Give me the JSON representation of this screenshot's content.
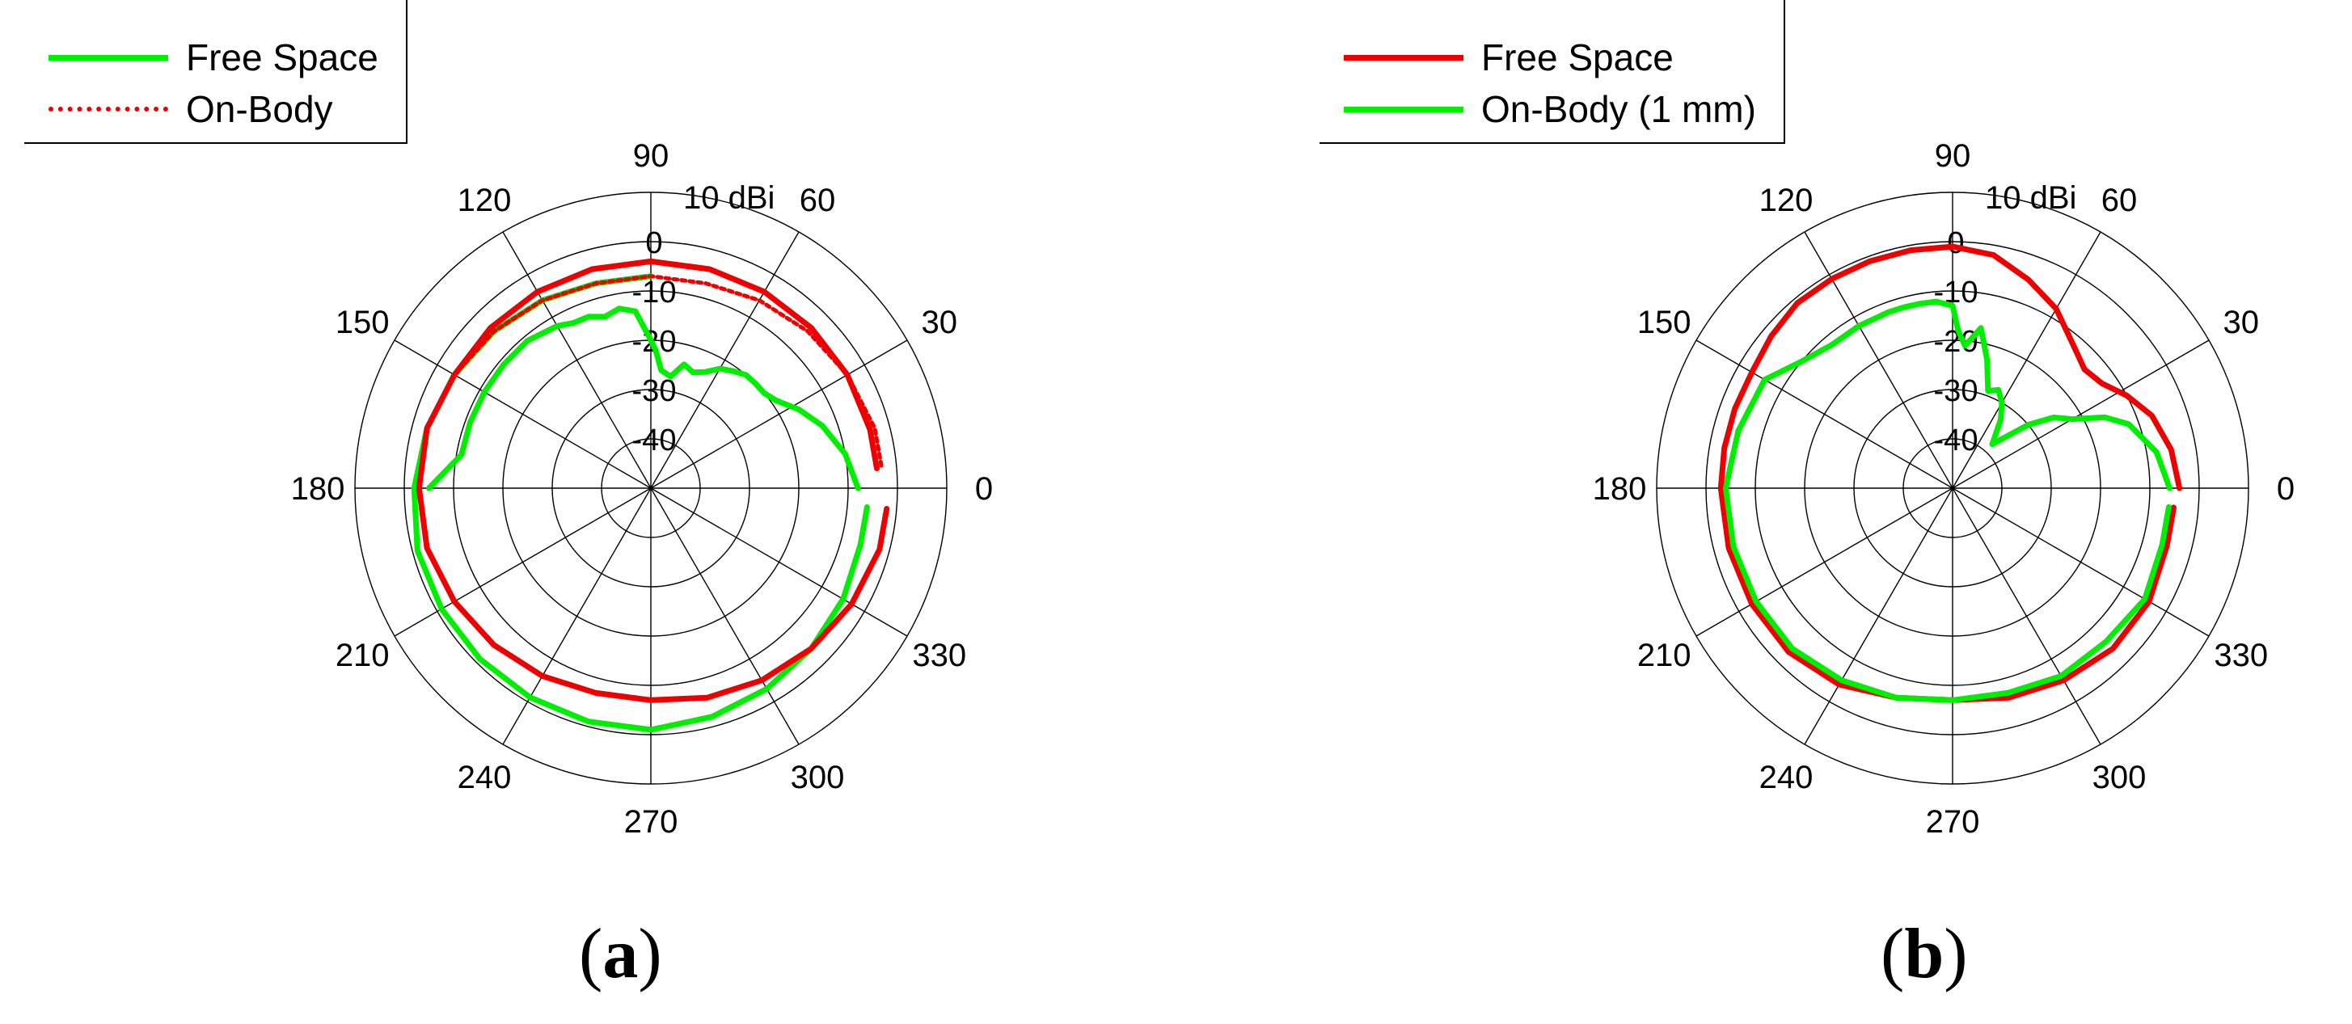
{
  "chart_data": [
    {
      "type": "polar-line",
      "caption_open": "(",
      "caption_letter": "a",
      "caption_close": ")",
      "radial_unit_label": "10 dBi",
      "radial_ticks": [
        0,
        -10,
        -20,
        -30,
        -40
      ],
      "r_range": [
        -50,
        10
      ],
      "angle_ticks": [
        "0",
        "30",
        "60",
        "90",
        "120",
        "150",
        "180",
        "210",
        "240",
        "270",
        "300",
        "330"
      ],
      "grid": true,
      "legend_position": "top-left",
      "series": [
        {
          "name": "Free Space",
          "color": "#00ee00",
          "dash": "solid",
          "points": [
            [
              -5,
              -6
            ],
            [
              -15,
              -6
            ],
            [
              -30,
              -5
            ],
            [
              -45,
              -4
            ],
            [
              -60,
              -3
            ],
            [
              -75,
              -2
            ],
            [
              -90,
              -1
            ],
            [
              -105,
              -1
            ],
            [
              -120,
              -1
            ],
            [
              -135,
              -1
            ],
            [
              -150,
              -1
            ],
            [
              -165,
              -1
            ],
            [
              -180,
              -2
            ],
            [
              -195,
              -3
            ],
            [
              -210,
              -4
            ],
            [
              -225,
              -5
            ],
            [
              -240,
              -6
            ],
            [
              -255,
              -7
            ],
            [
              -270,
              -7
            ]
          ]
        },
        {
          "name": "On-Body",
          "color": "#ee0000",
          "dash": "dotted",
          "points": [
            [
              -210,
              -4
            ],
            [
              -225,
              -5
            ],
            [
              -240,
              -6
            ],
            [
              -255,
              -7
            ],
            [
              -270,
              -7
            ],
            [
              -285,
              -7
            ],
            [
              -300,
              -6
            ],
            [
              -315,
              -5
            ],
            [
              -330,
              -4
            ],
            [
              -345,
              -3
            ],
            [
              -355,
              -3
            ]
          ]
        },
        {
          "name": "",
          "color": "#ee0000",
          "dash": "solid",
          "points": [
            [
              5,
              -4
            ],
            [
              15,
              -4
            ],
            [
              30,
              -4
            ],
            [
              45,
              -4
            ],
            [
              60,
              -4
            ],
            [
              75,
              -4
            ],
            [
              90,
              -4
            ],
            [
              105,
              -4
            ],
            [
              120,
              -4
            ],
            [
              135,
              -4
            ],
            [
              150,
              -4
            ],
            [
              165,
              -3
            ],
            [
              180,
              -3
            ],
            [
              195,
              -3
            ],
            [
              210,
              -4
            ],
            [
              225,
              -5
            ],
            [
              240,
              -6
            ],
            [
              255,
              -7
            ],
            [
              270,
              -7
            ],
            [
              285,
              -6
            ],
            [
              300,
              -5
            ],
            [
              315,
              -4
            ],
            [
              330,
              -3
            ],
            [
              345,
              -2
            ],
            [
              355,
              -2
            ]
          ]
        },
        {
          "name": "",
          "color": "#00ee00",
          "dash": "solid",
          "points": [
            [
              0,
              -8
            ],
            [
              10,
              -10
            ],
            [
              20,
              -13
            ],
            [
              28,
              -16
            ],
            [
              35,
              -19
            ],
            [
              40,
              -20
            ],
            [
              45,
              -20
            ],
            [
              50,
              -20
            ],
            [
              55,
              -21
            ],
            [
              60,
              -22
            ],
            [
              65,
              -24
            ],
            [
              70,
              -25
            ],
            [
              75,
              -24
            ],
            [
              80,
              -27
            ],
            [
              85,
              -26
            ],
            [
              88,
              -22
            ],
            [
              90,
              -20
            ],
            [
              95,
              -14
            ],
            [
              100,
              -13
            ],
            [
              105,
              -14
            ],
            [
              110,
              -13
            ],
            [
              115,
              -13
            ],
            [
              120,
              -12
            ],
            [
              130,
              -11
            ],
            [
              140,
              -11
            ],
            [
              150,
              -11
            ],
            [
              160,
              -11
            ],
            [
              170,
              -11
            ],
            [
              180,
              -5
            ]
          ]
        }
      ]
    },
    {
      "type": "polar-line",
      "caption_open": "(",
      "caption_letter": "b",
      "caption_close": ")",
      "radial_unit_label": "10 dBi",
      "radial_ticks": [
        0,
        -10,
        -20,
        -30,
        -40
      ],
      "r_range": [
        -50,
        10
      ],
      "angle_ticks": [
        "0",
        "30",
        "60",
        "90",
        "120",
        "150",
        "180",
        "210",
        "240",
        "270",
        "300",
        "330"
      ],
      "grid": true,
      "legend_position": "top-left",
      "series": [
        {
          "name": "Free Space",
          "color": "#ee0000",
          "dash": "solid",
          "points": [
            [
              0,
              -4
            ],
            [
              10,
              -5
            ],
            [
              20,
              -7
            ],
            [
              28,
              -10
            ],
            [
              35,
              -13
            ],
            [
              42,
              -14
            ],
            [
              50,
              -12
            ],
            [
              60,
              -8
            ],
            [
              70,
              -5
            ],
            [
              80,
              -2
            ],
            [
              90,
              -1
            ],
            [
              100,
              -1
            ],
            [
              110,
              -1
            ],
            [
              120,
              -1
            ],
            [
              130,
              -1
            ],
            [
              140,
              -2
            ],
            [
              150,
              -3
            ],
            [
              160,
              -3
            ],
            [
              170,
              -3
            ],
            [
              180,
              -3
            ],
            [
              195,
              -3
            ],
            [
              210,
              -3
            ],
            [
              225,
              -3
            ],
            [
              240,
              -4
            ],
            [
              255,
              -6
            ],
            [
              270,
              -7
            ],
            [
              285,
              -6
            ],
            [
              300,
              -5
            ],
            [
              315,
              -4
            ],
            [
              330,
              -4
            ],
            [
              345,
              -5
            ],
            [
              355,
              -5
            ]
          ]
        },
        {
          "name": "On-Body (1 mm)",
          "color": "#00ee00",
          "dash": "solid",
          "points": [
            [
              0,
              -6
            ],
            [
              10,
              -8
            ],
            [
              20,
              -12
            ],
            [
              25,
              -16
            ],
            [
              30,
              -22
            ],
            [
              35,
              -25
            ],
            [
              40,
              -30
            ],
            [
              48,
              -38
            ],
            [
              55,
              -33
            ],
            [
              60,
              -30
            ],
            [
              65,
              -28
            ],
            [
              70,
              -29
            ],
            [
              75,
              -23
            ],
            [
              80,
              -17
            ],
            [
              85,
              -21
            ],
            [
              88,
              -18
            ],
            [
              90,
              -13
            ],
            [
              95,
              -12
            ],
            [
              100,
              -12
            ],
            [
              105,
              -12
            ],
            [
              110,
              -12
            ],
            [
              120,
              -12
            ],
            [
              130,
              -12
            ],
            [
              140,
              -10
            ],
            [
              150,
              -6
            ],
            [
              165,
              -5
            ],
            [
              180,
              -4
            ],
            [
              195,
              -4
            ],
            [
              210,
              -4
            ],
            [
              225,
              -4
            ],
            [
              240,
              -5
            ],
            [
              255,
              -6
            ],
            [
              270,
              -7
            ],
            [
              285,
              -7
            ],
            [
              300,
              -6
            ],
            [
              315,
              -6
            ],
            [
              330,
              -5
            ],
            [
              345,
              -6
            ],
            [
              355,
              -6
            ]
          ]
        }
      ]
    }
  ]
}
